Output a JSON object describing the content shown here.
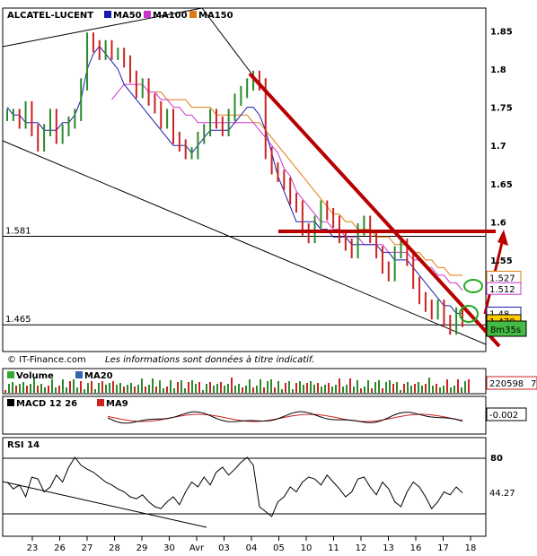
{
  "chart_data": [
    {
      "type": "line",
      "title": "ALCATEL-LUCENT",
      "legend": [
        {
          "name": "MA50",
          "color": "#1a1aaa"
        },
        {
          "name": "MA100",
          "color": "#cc33cc"
        },
        {
          "name": "MA150",
          "color": "#e07a10"
        }
      ],
      "ylim": [
        1.43,
        1.88
      ],
      "yticks": [
        "1.85",
        "1.8",
        "1.75",
        "1.7",
        "1.65",
        "1.6",
        "1.55"
      ],
      "ytick_values": [
        1.85,
        1.8,
        1.75,
        1.7,
        1.65,
        1.6,
        1.55
      ],
      "hlines": [
        {
          "label": "1.581",
          "value": 1.581
        },
        {
          "label": "1.465",
          "value": 1.465
        }
      ],
      "price_tags": [
        {
          "label": "1.527",
          "value": 1.527,
          "color": "#e07a10",
          "fill": "#ffffff"
        },
        {
          "label": "1.512",
          "value": 1.512,
          "color": "#cc33cc",
          "fill": "#ffffff"
        },
        {
          "label": "1.48",
          "value": 1.48,
          "color": "#1a1aaa",
          "fill": "#ffffff"
        },
        {
          "label": "1.470",
          "value": 1.47,
          "color": "#000000",
          "fill": "#ffcc00"
        }
      ],
      "countdown": "8m35s",
      "watermark": "© IT-Finance.com",
      "disclaimer": "Les informations sont données à titre indicatif.",
      "series_price": [
        1.74,
        1.74,
        1.73,
        1.75,
        1.72,
        1.7,
        1.72,
        1.74,
        1.71,
        1.72,
        1.73,
        1.74,
        1.78,
        1.84,
        1.83,
        1.82,
        1.83,
        1.82,
        1.82,
        1.81,
        1.79,
        1.77,
        1.78,
        1.76,
        1.75,
        1.73,
        1.74,
        1.71,
        1.7,
        1.69,
        1.69,
        1.71,
        1.72,
        1.74,
        1.73,
        1.72,
        1.74,
        1.76,
        1.77,
        1.78,
        1.79,
        1.78,
        1.69,
        1.67,
        1.66,
        1.65,
        1.63,
        1.62,
        1.59,
        1.58,
        1.6,
        1.62,
        1.61,
        1.6,
        1.58,
        1.57,
        1.56,
        1.59,
        1.6,
        1.58,
        1.56,
        1.54,
        1.53,
        1.56,
        1.57,
        1.55,
        1.52,
        1.5,
        1.49,
        1.48,
        1.49,
        1.47,
        1.46,
        1.48,
        1.47
      ],
      "series_ma50": [
        1.75,
        1.74,
        1.74,
        1.73,
        1.73,
        1.73,
        1.72,
        1.72,
        1.72,
        1.73,
        1.73,
        1.74,
        1.76,
        1.8,
        1.82,
        1.83,
        1.82,
        1.81,
        1.8,
        1.78,
        1.77,
        1.76,
        1.75,
        1.74,
        1.73,
        1.72,
        1.71,
        1.7,
        1.7,
        1.7,
        1.69,
        1.7,
        1.71,
        1.72,
        1.72,
        1.72,
        1.72,
        1.73,
        1.74,
        1.75,
        1.75,
        1.74,
        1.72,
        1.69,
        1.66,
        1.64,
        1.62,
        1.6,
        1.6,
        1.6,
        1.6,
        1.59,
        1.59,
        1.58,
        1.58,
        1.58,
        1.57,
        1.57,
        1.57,
        1.57,
        1.57,
        1.56,
        1.56,
        1.55,
        1.55,
        1.55,
        1.54,
        1.53,
        1.52,
        1.51,
        1.5,
        1.49,
        1.49,
        1.48,
        1.48
      ],
      "series_ma100": [
        null,
        null,
        null,
        null,
        null,
        null,
        null,
        null,
        null,
        null,
        null,
        null,
        null,
        null,
        null,
        null,
        null,
        1.76,
        1.77,
        1.78,
        1.78,
        1.78,
        1.78,
        1.77,
        1.77,
        1.76,
        1.76,
        1.75,
        1.75,
        1.74,
        1.74,
        1.73,
        1.73,
        1.73,
        1.73,
        1.73,
        1.73,
        1.73,
        1.73,
        1.73,
        1.73,
        1.72,
        1.71,
        1.7,
        1.69,
        1.67,
        1.66,
        1.64,
        1.63,
        1.62,
        1.61,
        1.6,
        1.6,
        1.59,
        1.59,
        1.58,
        1.58,
        1.58,
        1.57,
        1.57,
        1.57,
        1.57,
        1.56,
        1.56,
        1.56,
        1.56,
        1.55,
        1.55,
        1.54,
        1.54,
        1.53,
        1.53,
        1.52,
        1.52,
        1.51
      ],
      "series_ma150": [
        null,
        null,
        null,
        null,
        null,
        null,
        null,
        null,
        null,
        null,
        null,
        null,
        null,
        null,
        null,
        null,
        null,
        null,
        null,
        null,
        null,
        null,
        null,
        null,
        1.77,
        1.77,
        1.76,
        1.76,
        1.76,
        1.76,
        1.75,
        1.75,
        1.75,
        1.75,
        1.74,
        1.74,
        1.74,
        1.74,
        1.74,
        1.74,
        1.73,
        1.73,
        1.72,
        1.71,
        1.7,
        1.69,
        1.68,
        1.67,
        1.66,
        1.65,
        1.64,
        1.63,
        1.62,
        1.61,
        1.61,
        1.6,
        1.6,
        1.59,
        1.59,
        1.59,
        1.58,
        1.58,
        1.58,
        1.57,
        1.57,
        1.57,
        1.56,
        1.56,
        1.55,
        1.55,
        1.54,
        1.54,
        1.53,
        1.53,
        1.53
      ]
    },
    {
      "type": "bar",
      "title": "Volume",
      "legend": [
        {
          "name": "Volume",
          "color": "#33aa33"
        },
        {
          "name": "MA20",
          "color": "#3366aa"
        }
      ],
      "value_tag": "220598",
      "value_tag_cut": "7"
    },
    {
      "type": "line",
      "title": "MACD 12 26",
      "legend": [
        {
          "name": "MACD 12 26",
          "color": "#000000"
        },
        {
          "name": "MA9",
          "color": "#cc2222"
        }
      ],
      "value_tag": "-0.002"
    },
    {
      "type": "line",
      "title": "RSI 14",
      "ylim": [
        0,
        100
      ],
      "yticks": [
        "80"
      ],
      "ytick_values": [
        80
      ],
      "value_tag": "44.27",
      "series": [
        55,
        48,
        52,
        40,
        60,
        58,
        45,
        50,
        62,
        55,
        70,
        80,
        72,
        68,
        65,
        60,
        55,
        52,
        48,
        45,
        40,
        38,
        42,
        35,
        30,
        28,
        35,
        40,
        32,
        45,
        55,
        50,
        60,
        52,
        65,
        70,
        62,
        68,
        75,
        80,
        72,
        30,
        25,
        20,
        35,
        40,
        50,
        45,
        55,
        60,
        58,
        52,
        62,
        55,
        48,
        40,
        45,
        58,
        60,
        50,
        42,
        55,
        48,
        35,
        30,
        45,
        55,
        50,
        40,
        28,
        35,
        45,
        42,
        50,
        44
      ]
    },
    {
      "type": "axis",
      "x_labels": [
        "23",
        "26",
        "27",
        "28",
        "29",
        "30",
        "Avr",
        "03",
        "04",
        "05",
        "10",
        "11",
        "12",
        "13",
        "16",
        "17",
        "18"
      ]
    }
  ]
}
